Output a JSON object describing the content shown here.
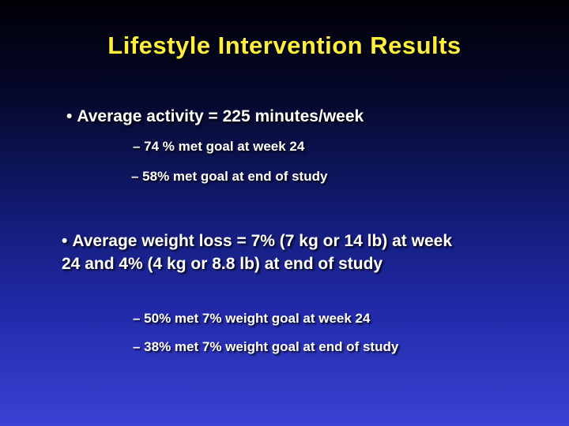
{
  "slide": {
    "title": "Lifestyle Intervention Results",
    "bullets": [
      {
        "marker": "•",
        "text": "Average activity = 225 minutes/week",
        "subs": [
          "– 74 % met goal at week 24",
          "– 58% met goal at end of study"
        ]
      },
      {
        "marker": "•",
        "text": "Average weight loss = 7% (7 kg or 14 lb) at week 24 and 4% (4 kg or 8.8 lb) at end of study",
        "subs": [
          "– 50% met 7% weight goal at week 24",
          "– 38% met 7% weight goal at end of study"
        ]
      }
    ],
    "colors": {
      "title": "#ffef3a",
      "body_text": "#ffffff",
      "background_top": "#000006",
      "background_bottom": "#3a42d4"
    }
  }
}
